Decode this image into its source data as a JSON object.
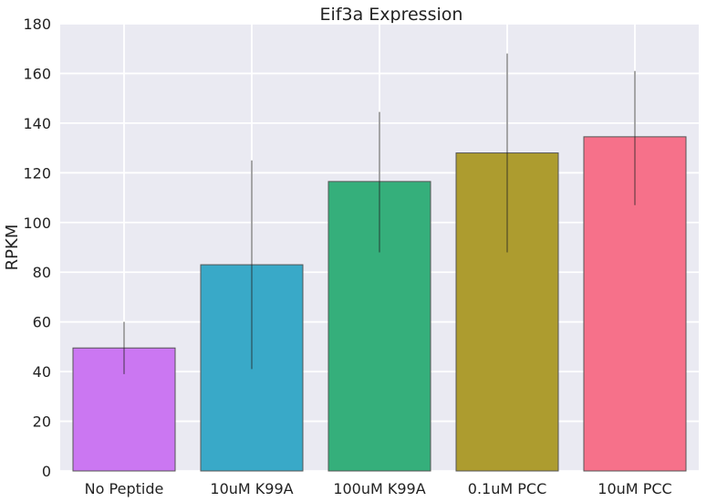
{
  "chart_data": {
    "type": "bar",
    "title": "Eif3a Expression",
    "xlabel": "",
    "ylabel": "RPKM",
    "ylim": [
      0,
      180
    ],
    "yticks": [
      0,
      20,
      40,
      60,
      80,
      100,
      120,
      140,
      160,
      180
    ],
    "grid": true,
    "categories": [
      "No Peptide",
      "10uM K99A",
      "100uM K99A",
      "0.1uM PCC",
      "10uM PCC"
    ],
    "values": [
      49.5,
      83,
      116.5,
      128,
      134.5
    ],
    "error_low": [
      39,
      41,
      88,
      88,
      107
    ],
    "error_high": [
      60,
      125,
      144.5,
      168,
      161
    ],
    "colors": [
      "#cb77f2",
      "#39a9c8",
      "#35af7b",
      "#ad9c2f",
      "#f6718a"
    ],
    "background": "#eaeaf2",
    "grid_color": "#ffffff"
  }
}
